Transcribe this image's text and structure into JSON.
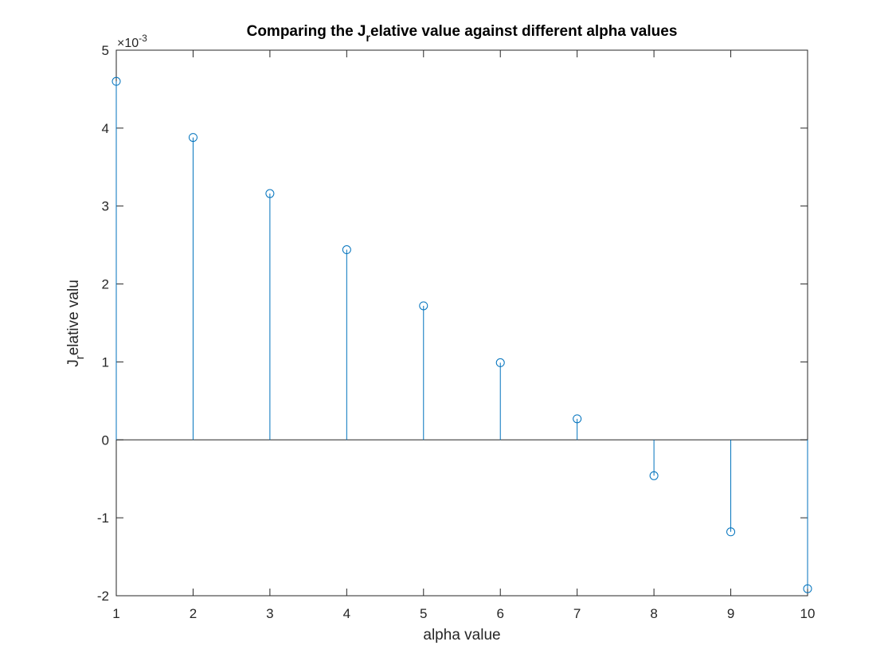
{
  "chart_data": {
    "type": "stem",
    "title_main": "Comparing the J",
    "title_sub": "r",
    "title_rest": "elative value against different alpha values",
    "xlabel": "alpha value",
    "ylabel_main": "J",
    "ylabel_sub": "r",
    "ylabel_rest": "elative valu",
    "y_exponent_prefix": "×10",
    "y_exponent_power": "-3",
    "xlim": [
      1,
      10
    ],
    "ylim": [
      -2,
      5
    ],
    "x_ticks": [
      "1",
      "2",
      "3",
      "4",
      "5",
      "6",
      "7",
      "8",
      "9",
      "10"
    ],
    "y_ticks": [
      "-2",
      "-1",
      "0",
      "1",
      "2",
      "3",
      "4",
      "5"
    ],
    "x": [
      1,
      2,
      3,
      4,
      5,
      6,
      7,
      8,
      9,
      10
    ],
    "y_scaled": [
      4.6,
      3.88,
      3.16,
      2.44,
      1.72,
      0.99,
      0.27,
      -0.46,
      -1.18,
      -1.91
    ],
    "series_color": "#0072BD",
    "axis_color": "#262626",
    "grid": false,
    "box": true
  }
}
